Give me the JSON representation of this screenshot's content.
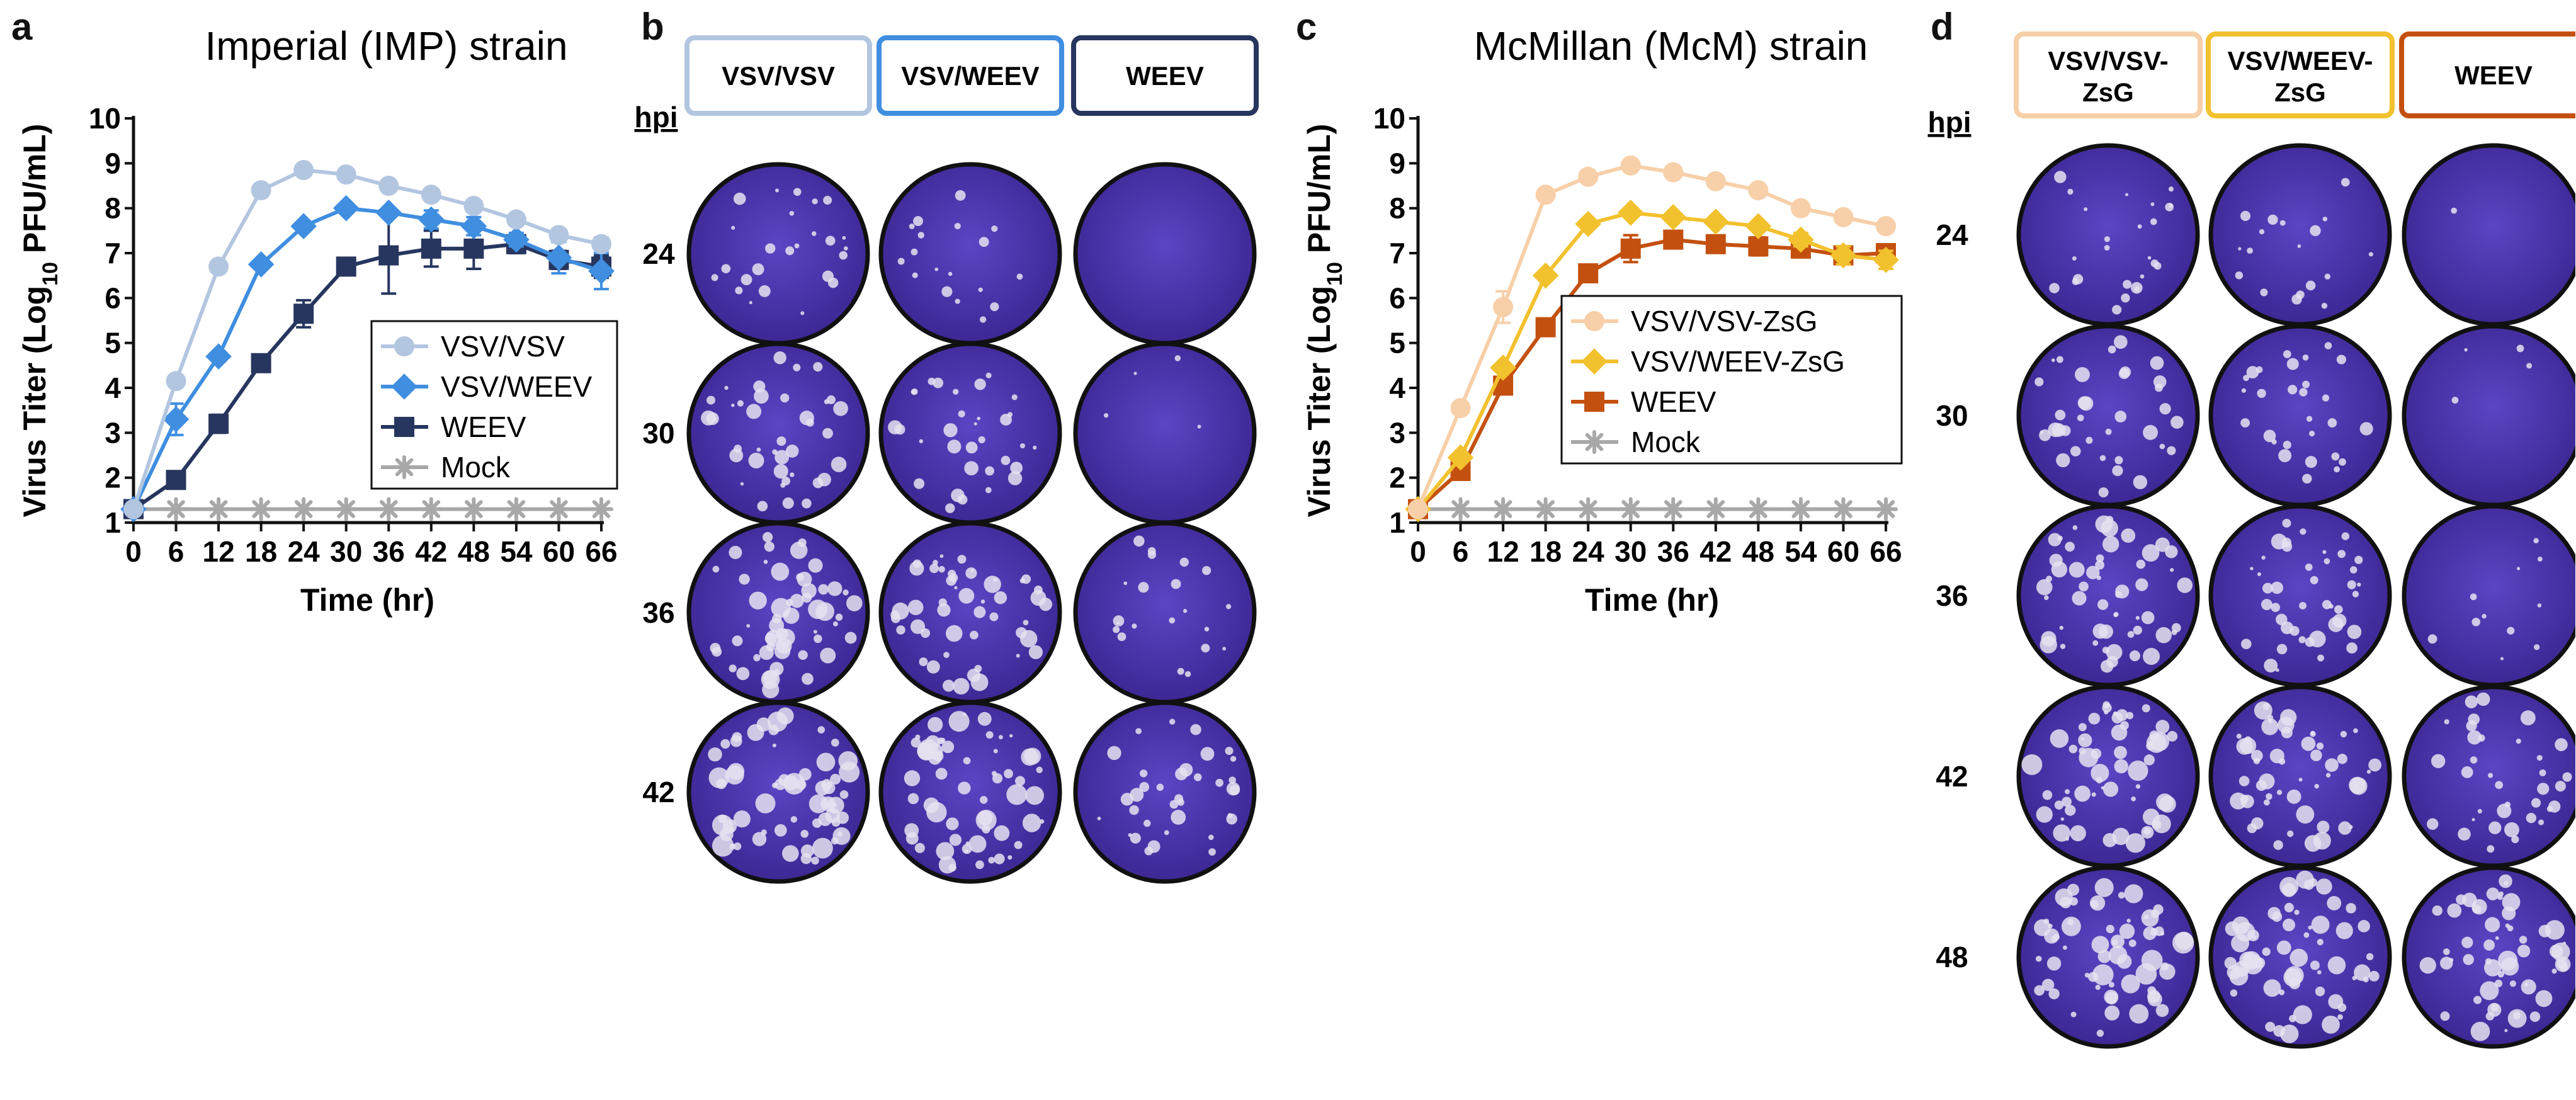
{
  "panels": {
    "a": "a",
    "b": "b",
    "c": "c",
    "d": "d"
  },
  "chart_data": [
    {
      "type": "line",
      "title": "Imperial (IMP) strain",
      "xlabel": "Time (hr)",
      "ylabel_prefix": "Virus Titer (Log",
      "ylabel_sub": "10",
      "ylabel_suffix": " PFU/mL)",
      "x": [
        0,
        6,
        12,
        18,
        24,
        30,
        36,
        42,
        48,
        54,
        60,
        66
      ],
      "xlim": [
        0,
        66
      ],
      "ylim": [
        1,
        10
      ],
      "yticks": [
        1,
        2,
        3,
        4,
        5,
        6,
        7,
        8,
        9,
        10
      ],
      "legend_position": "middle-right",
      "series": [
        {
          "name": "VSV/VSV",
          "marker": "circle",
          "color": "#b3c6e0",
          "values": [
            1.3,
            4.15,
            6.7,
            8.4,
            8.85,
            8.75,
            8.5,
            8.3,
            8.05,
            7.75,
            7.4,
            7.2
          ],
          "errors": [
            0,
            0,
            0.1,
            0.1,
            0,
            0,
            0,
            0,
            0,
            0,
            0,
            0.15
          ]
        },
        {
          "name": "VSV/WEEV",
          "marker": "diamond",
          "color": "#3f8ee0",
          "values": [
            1.3,
            3.3,
            4.7,
            6.75,
            7.6,
            8.0,
            7.9,
            7.75,
            7.6,
            7.3,
            6.9,
            6.6
          ],
          "errors": [
            0,
            0.35,
            0.1,
            0,
            0,
            0,
            0,
            0.2,
            0.2,
            0.15,
            0.35,
            0.4
          ]
        },
        {
          "name": "WEEV",
          "marker": "square",
          "color": "#27365f",
          "values": [
            1.3,
            1.95,
            3.2,
            4.55,
            5.65,
            6.7,
            6.95,
            7.1,
            7.1,
            7.2,
            6.85,
            6.7
          ],
          "errors": [
            0,
            0,
            0.2,
            0,
            0.3,
            0,
            0.85,
            0.4,
            0.45,
            0.2,
            0.2,
            0.25
          ]
        },
        {
          "name": "Mock",
          "marker": "asterisk",
          "color": "#a8a8a8",
          "values": [
            1.3,
            1.3,
            1.3,
            1.3,
            1.3,
            1.3,
            1.3,
            1.3,
            1.3,
            1.3,
            1.3,
            1.3
          ],
          "errors": [
            0,
            0,
            0,
            0,
            0,
            0,
            0,
            0,
            0,
            0,
            0,
            0
          ]
        }
      ]
    },
    {
      "type": "line",
      "title": "McMillan (McM) strain",
      "xlabel": "Time (hr)",
      "ylabel_prefix": "Virus Titer (Log",
      "ylabel_sub": "10",
      "ylabel_suffix": " PFU/mL)",
      "x": [
        0,
        6,
        12,
        18,
        24,
        30,
        36,
        42,
        48,
        54,
        60,
        66
      ],
      "xlim": [
        0,
        66
      ],
      "ylim": [
        1,
        10
      ],
      "yticks": [
        1,
        2,
        3,
        4,
        5,
        6,
        7,
        8,
        9,
        10
      ],
      "legend_position": "middle-right",
      "series": [
        {
          "name": "VSV/VSV-ZsG",
          "marker": "circle",
          "color": "#f7cfa8",
          "values": [
            1.3,
            3.55,
            5.8,
            8.3,
            8.7,
            8.95,
            8.8,
            8.6,
            8.4,
            8.0,
            7.8,
            7.6
          ],
          "errors": [
            0,
            0,
            0.35,
            0,
            0,
            0,
            0,
            0,
            0,
            0,
            0,
            0
          ]
        },
        {
          "name": "VSV/WEEV-ZsG",
          "marker": "diamond",
          "color": "#f2c12e",
          "values": [
            1.3,
            2.45,
            4.45,
            6.5,
            7.65,
            7.9,
            7.8,
            7.7,
            7.6,
            7.3,
            6.95,
            6.85
          ],
          "errors": [
            0,
            0,
            0,
            0,
            0,
            0,
            0,
            0,
            0,
            0.15,
            0.2,
            0.2
          ]
        },
        {
          "name": "WEEV",
          "marker": "square",
          "color": "#c4500f",
          "values": [
            1.3,
            2.15,
            4.05,
            5.35,
            6.55,
            7.1,
            7.3,
            7.2,
            7.15,
            7.1,
            6.95,
            7.0
          ],
          "errors": [
            0,
            0,
            0,
            0,
            0,
            0.3,
            0,
            0,
            0.2,
            0,
            0.2,
            0
          ]
        },
        {
          "name": "Mock",
          "marker": "asterisk",
          "color": "#a8a8a8",
          "values": [
            1.3,
            1.3,
            1.3,
            1.3,
            1.3,
            1.3,
            1.3,
            1.3,
            1.3,
            1.3,
            1.3,
            1.3
          ],
          "errors": [
            0,
            0,
            0,
            0,
            0,
            0,
            0,
            0,
            0,
            0,
            0,
            0
          ]
        }
      ]
    }
  ],
  "plaque_b": {
    "hpi_title": "hpi",
    "columns": [
      {
        "label": "VSV/VSV",
        "border": "#b3c6e0"
      },
      {
        "label": "VSV/WEEV",
        "border": "#3f8ee0"
      },
      {
        "label": "WEEV",
        "border": "#27365f"
      }
    ],
    "rows": [
      "24",
      "30",
      "36",
      "42"
    ],
    "plaque_density": [
      [
        0.35,
        0.25,
        0.0
      ],
      [
        0.55,
        0.45,
        0.05
      ],
      [
        0.8,
        0.7,
        0.3
      ],
      [
        0.9,
        0.85,
        0.5
      ]
    ]
  },
  "plaque_d": {
    "hpi_title": "hpi",
    "columns": [
      {
        "line1": "VSV/VSV-",
        "line2": "ZsG",
        "border": "#f7cfa8"
      },
      {
        "line1": "VSV/WEEV-",
        "line2": "ZsG",
        "border": "#f2c12e"
      },
      {
        "line1": "WEEV",
        "line2": "",
        "border": "#c4500f"
      }
    ],
    "rows": [
      "24",
      "30",
      "36",
      "42",
      "48"
    ],
    "plaque_density": [
      [
        0.35,
        0.25,
        0.02
      ],
      [
        0.5,
        0.4,
        0.05
      ],
      [
        0.75,
        0.6,
        0.15
      ],
      [
        0.85,
        0.75,
        0.5
      ],
      [
        0.9,
        0.85,
        0.8
      ]
    ]
  },
  "colors": {
    "plate_bg": "#4f35b0",
    "plate_dark": "#3a2590",
    "plate_border": "#111111",
    "plaque": "#e6e2f0"
  }
}
